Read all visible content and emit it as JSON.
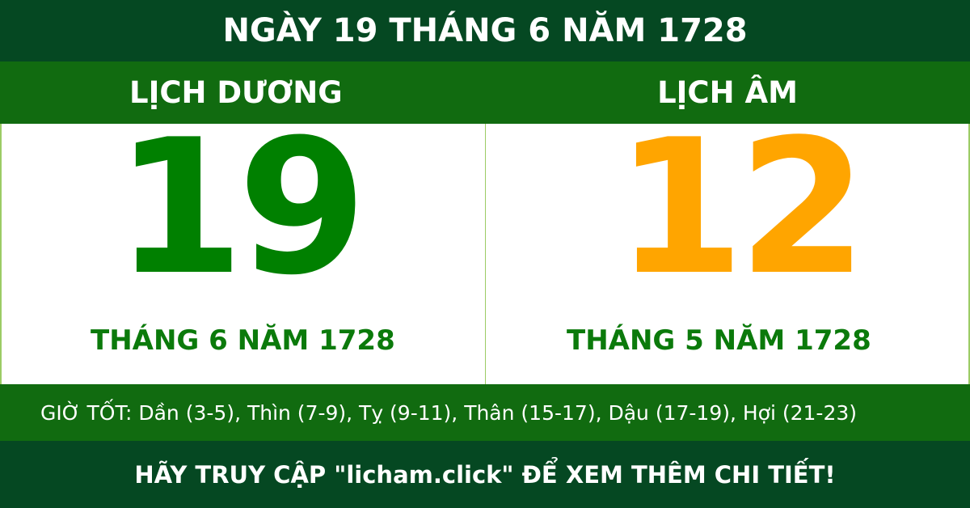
{
  "title": "NGÀY 19 THÁNG 6 NĂM 1728",
  "solar": {
    "heading": "LỊCH DƯƠNG",
    "day": "19",
    "month_year": "THÁNG 6 NĂM 1728"
  },
  "lunar": {
    "heading": "LỊCH ÂM",
    "day": "12",
    "month_year": "THÁNG 5 NĂM 1728"
  },
  "good_hours": "GIỜ TỐT: Dần (3-5), Thìn (7-9), Tỵ (9-11), Thân (15-17), Dậu (17-19), Hợi (21-23)",
  "footer": "HÃY TRUY CẬP \"licham.click\" ĐỂ XEM THÊM CHI TIẾT!",
  "colors": {
    "dark_green": "#054822",
    "band_green": "#116b10",
    "solar_digit": "#008000",
    "lunar_digit": "#ffa500"
  }
}
